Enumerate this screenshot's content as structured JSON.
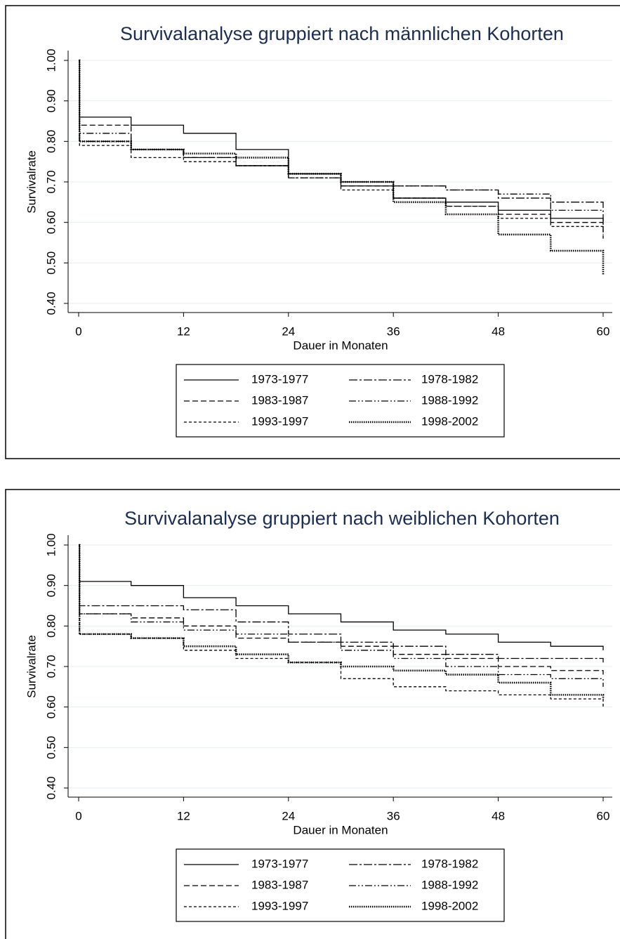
{
  "chart_data": [
    {
      "type": "step",
      "title": "Survivalanalyse gruppiert nach männlichen Kohorten",
      "xlabel": "Dauer in Monaten",
      "ylabel": "Survivalrate",
      "x": [
        0,
        0.1,
        6,
        12,
        18,
        24,
        30,
        36,
        42,
        48,
        54,
        60
      ],
      "xlim": [
        0,
        60
      ],
      "xticks": [
        0,
        12,
        24,
        36,
        48,
        60
      ],
      "ylim": [
        0.4,
        1.0
      ],
      "yticks": [
        {
          "value": 0.4,
          "label": "0.40"
        },
        {
          "value": 0.5,
          "label": "0.50"
        },
        {
          "value": 0.6,
          "label": "0.60"
        },
        {
          "value": 0.7,
          "label": "0.70"
        },
        {
          "value": 0.8,
          "label": "0.80"
        },
        {
          "value": 0.9,
          "label": "0.90"
        },
        {
          "value": 1.0,
          "label": "1.00"
        }
      ],
      "grid": true,
      "legend": "bottom",
      "series": [
        {
          "name": "1973-1977",
          "color": "#000000",
          "dash": "none",
          "values": [
            1.0,
            0.86,
            0.84,
            0.82,
            0.78,
            0.72,
            0.69,
            0.66,
            0.65,
            0.63,
            0.61,
            0.6
          ]
        },
        {
          "name": "1978-1982",
          "color": "#000000",
          "dash": "12,3,3,3",
          "values": [
            1.0,
            0.8,
            0.78,
            0.76,
            0.74,
            0.72,
            0.7,
            0.69,
            0.68,
            0.66,
            0.65,
            0.63
          ]
        },
        {
          "name": "1983-1987",
          "color": "#000000",
          "dash": "8,4",
          "values": [
            1.0,
            0.84,
            0.78,
            0.76,
            0.74,
            0.72,
            0.69,
            0.66,
            0.64,
            0.62,
            0.6,
            0.56
          ]
        },
        {
          "name": "1988-1992",
          "color": "#000000",
          "dash": "10,3,2,3,2,3",
          "values": [
            1.0,
            0.82,
            0.78,
            0.76,
            0.74,
            0.71,
            0.7,
            0.69,
            0.68,
            0.67,
            0.63,
            0.58
          ]
        },
        {
          "name": "1993-1997",
          "color": "#000000",
          "dash": "4,3",
          "values": [
            1.0,
            0.79,
            0.76,
            0.75,
            0.74,
            0.71,
            0.68,
            0.66,
            0.64,
            0.61,
            0.59,
            0.57
          ]
        },
        {
          "name": "1998-2002",
          "color": "#000000",
          "dash": "1.5,1.5",
          "values": [
            1.0,
            0.8,
            0.78,
            0.77,
            0.76,
            0.72,
            0.7,
            0.65,
            0.62,
            0.57,
            0.53,
            0.47
          ]
        }
      ]
    },
    {
      "type": "step",
      "title": "Survivalanalyse gruppiert nach weiblichen Kohorten",
      "xlabel": "Dauer in Monaten",
      "ylabel": "Survivalrate",
      "x": [
        0,
        0.1,
        6,
        12,
        18,
        24,
        30,
        36,
        42,
        48,
        54,
        60
      ],
      "xlim": [
        0,
        60
      ],
      "xticks": [
        0,
        12,
        24,
        36,
        48,
        60
      ],
      "ylim": [
        0.4,
        1.0
      ],
      "yticks": [
        {
          "value": 0.4,
          "label": "0.40"
        },
        {
          "value": 0.5,
          "label": "0.50"
        },
        {
          "value": 0.6,
          "label": "0.60"
        },
        {
          "value": 0.7,
          "label": "0.70"
        },
        {
          "value": 0.8,
          "label": "0.80"
        },
        {
          "value": 0.9,
          "label": "0.90"
        },
        {
          "value": 1.0,
          "label": "1.00"
        }
      ],
      "grid": true,
      "legend": "bottom",
      "series": [
        {
          "name": "1973-1977",
          "color": "#000000",
          "dash": "none",
          "values": [
            1.0,
            0.91,
            0.9,
            0.87,
            0.85,
            0.83,
            0.81,
            0.79,
            0.78,
            0.76,
            0.75,
            0.74
          ]
        },
        {
          "name": "1978-1982",
          "color": "#000000",
          "dash": "12,3,3,3",
          "values": [
            1.0,
            0.85,
            0.85,
            0.84,
            0.81,
            0.78,
            0.76,
            0.75,
            0.73,
            0.72,
            0.72,
            0.71
          ]
        },
        {
          "name": "1983-1987",
          "color": "#000000",
          "dash": "8,4",
          "values": [
            1.0,
            0.83,
            0.82,
            0.8,
            0.77,
            0.76,
            0.75,
            0.73,
            0.72,
            0.7,
            0.69,
            0.68
          ]
        },
        {
          "name": "1988-1992",
          "color": "#000000",
          "dash": "10,3,2,3,2,3",
          "values": [
            1.0,
            0.83,
            0.81,
            0.79,
            0.78,
            0.76,
            0.74,
            0.72,
            0.7,
            0.68,
            0.67,
            0.65
          ]
        },
        {
          "name": "1993-1997",
          "color": "#000000",
          "dash": "4,3",
          "values": [
            1.0,
            0.78,
            0.77,
            0.74,
            0.72,
            0.71,
            0.67,
            0.65,
            0.64,
            0.63,
            0.62,
            0.6
          ]
        },
        {
          "name": "1998-2002",
          "color": "#000000",
          "dash": "1.5,1.5",
          "values": [
            1.0,
            0.78,
            0.77,
            0.75,
            0.73,
            0.71,
            0.7,
            0.69,
            0.68,
            0.66,
            0.63,
            0.62
          ]
        }
      ]
    }
  ]
}
